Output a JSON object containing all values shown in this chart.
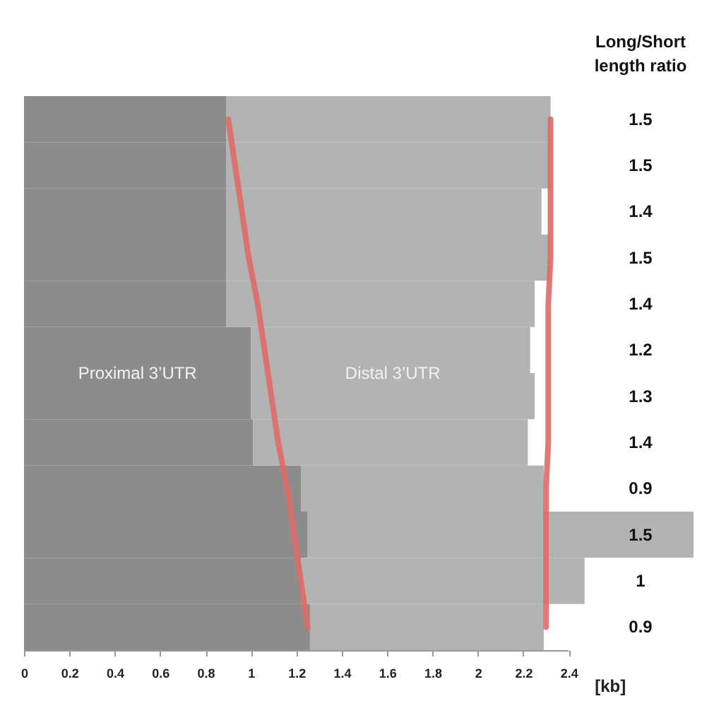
{
  "chart_data": {
    "type": "bar",
    "orientation": "horizontal",
    "stacked": true,
    "ylabel": "Long/Short length ratio",
    "xlabel": "[kb]",
    "categories": [
      "1.5",
      "1.5",
      "1.4",
      "1.5",
      "1.4",
      "1.2",
      "1.3",
      "1.4",
      "0.9",
      "1.5",
      "1",
      "0.9"
    ],
    "series": [
      {
        "name": "Proximal 3’UTR",
        "color": "#8c8c8c",
        "values": [
          0.89,
          0.89,
          0.89,
          0.89,
          0.89,
          1.0,
          1.0,
          1.01,
          1.22,
          1.25,
          1.22,
          1.26
        ]
      },
      {
        "name": "Distal 3’UTR",
        "color": "#b3b3b3",
        "values": [
          1.43,
          1.43,
          1.39,
          1.43,
          1.36,
          1.23,
          1.25,
          1.21,
          1.07,
          1.7,
          1.25,
          1.03
        ]
      },
      {
        "type": "line",
        "color": "#e06a68",
        "values": [
          0.9,
          0.93,
          0.96,
          0.99,
          1.03,
          1.06,
          1.09,
          1.12,
          1.16,
          1.19,
          1.22,
          1.25
        ]
      },
      {
        "type": "line",
        "color": "#e06a68",
        "values": [
          2.32,
          2.32,
          2.32,
          2.32,
          2.31,
          2.31,
          2.31,
          2.31,
          2.3,
          2.3,
          2.3,
          2.3
        ]
      }
    ],
    "xlim": [
      0,
      2.95
    ],
    "xticks": [
      0,
      0.2,
      0.4,
      0.6,
      0.8,
      1,
      1.2,
      1.4,
      1.6,
      1.8,
      2,
      2.2,
      2.4
    ],
    "grid": false,
    "legend": false
  }
}
